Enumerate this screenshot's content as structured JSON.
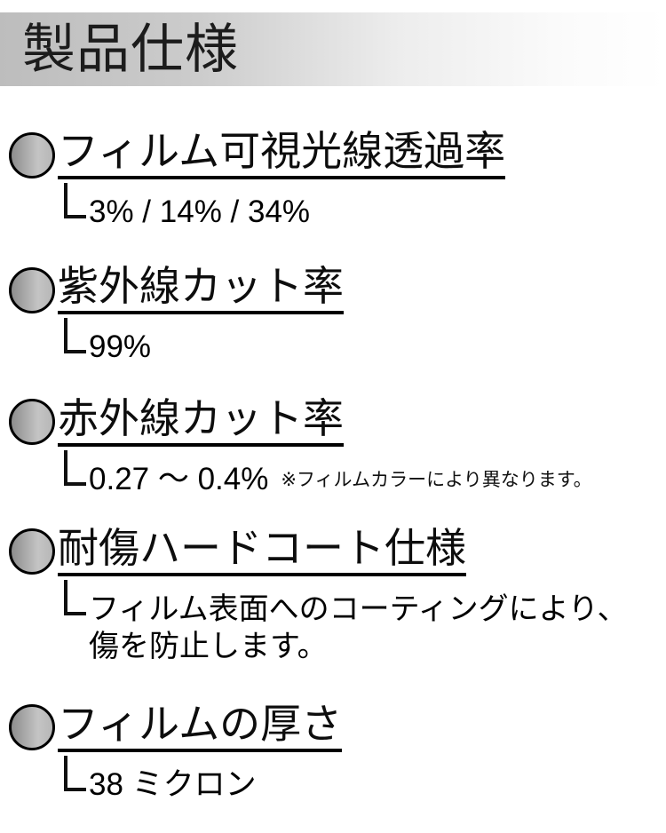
{
  "header": {
    "title": "製品仕様"
  },
  "sections": [
    {
      "title": "フィルム可視光線透過率",
      "value": "3% / 14% / 34%"
    },
    {
      "title": "紫外線カット率",
      "value": "99%"
    },
    {
      "title": "赤外線カット率",
      "value": "0.27 ～ 0.4%",
      "note": "※フィルムカラーにより異なります。"
    },
    {
      "title": "耐傷ハードコート仕様",
      "value": "フィルム表面へのコーティングにより、",
      "value_line2": "傷を防止します。"
    },
    {
      "title": "フィルムの厚さ",
      "value": "38 ミクロン"
    }
  ],
  "colors": {
    "header_band_start": "#bdbdbd",
    "header_band_end": "#ffffff",
    "bullet_fill_start": "#8d8d8d",
    "bullet_fill_end": "#c0c0c0",
    "bullet_outline": "#000000",
    "text": "#000000"
  }
}
